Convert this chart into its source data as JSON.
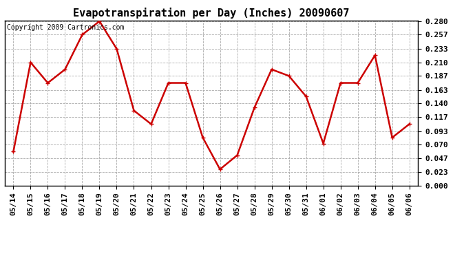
{
  "title": "Evapotranspiration per Day (Inches) 20090607",
  "copyright_text": "Copyright 2009 Cartronics.com",
  "dates": [
    "05/14",
    "05/15",
    "05/16",
    "05/17",
    "05/18",
    "05/19",
    "05/20",
    "05/21",
    "05/22",
    "05/23",
    "05/24",
    "05/25",
    "05/26",
    "05/27",
    "05/28",
    "05/29",
    "05/30",
    "05/31",
    "06/01",
    "06/02",
    "06/03",
    "06/04",
    "06/05",
    "06/06"
  ],
  "values": [
    0.058,
    0.21,
    0.175,
    0.198,
    0.257,
    0.28,
    0.233,
    0.128,
    0.105,
    0.175,
    0.175,
    0.082,
    0.028,
    0.052,
    0.133,
    0.198,
    0.187,
    0.152,
    0.072,
    0.175,
    0.175,
    0.222,
    0.082,
    0.105
  ],
  "ylim": [
    0.0,
    0.28
  ],
  "yticks": [
    0.0,
    0.023,
    0.047,
    0.07,
    0.093,
    0.117,
    0.14,
    0.163,
    0.187,
    0.21,
    0.233,
    0.257,
    0.28
  ],
  "line_color": "#cc0000",
  "marker_color": "#cc0000",
  "bg_color": "#ffffff",
  "plot_bg_color": "#ffffff",
  "grid_color": "#aaaaaa",
  "title_fontsize": 11,
  "copyright_fontsize": 7,
  "tick_fontsize": 8,
  "marker": "+",
  "marker_size": 5,
  "line_width": 1.8
}
